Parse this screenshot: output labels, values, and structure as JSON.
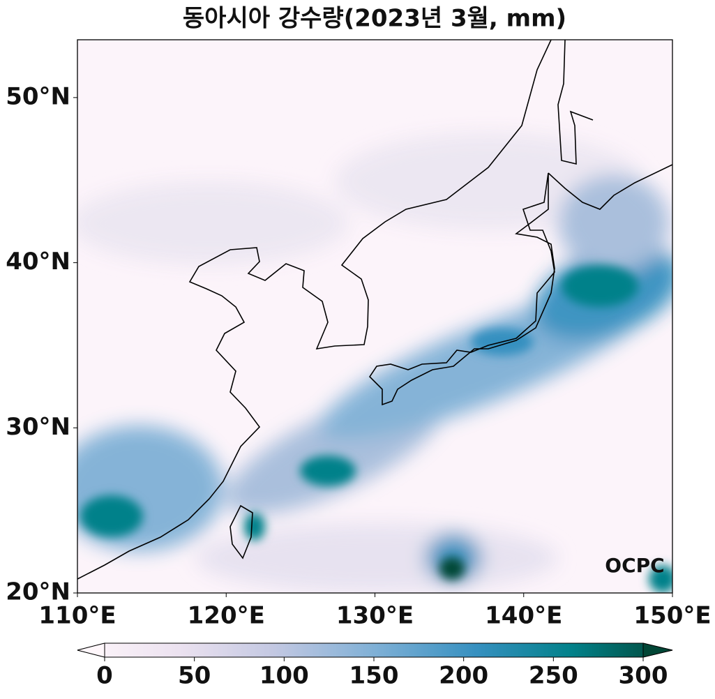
{
  "chart_data": {
    "type": "map",
    "title": "동아시아 강수량(2023년 3월, mm)",
    "xlim": [
      110,
      150
    ],
    "ylim": [
      20,
      53.5
    ],
    "xticks": [
      {
        "value": 110,
        "label": "110°E"
      },
      {
        "value": 120,
        "label": "120°E"
      },
      {
        "value": 130,
        "label": "130°E"
      },
      {
        "value": 140,
        "label": "140°E"
      },
      {
        "value": 150,
        "label": "150°E"
      }
    ],
    "yticks": [
      {
        "value": 20,
        "label": "20°N"
      },
      {
        "value": 30,
        "label": "30°N"
      },
      {
        "value": 40,
        "label": "40°N"
      },
      {
        "value": 50,
        "label": "50°N"
      }
    ],
    "colorbar": {
      "clim": [
        0,
        300
      ],
      "ticks": [
        0,
        50,
        100,
        150,
        200,
        250,
        300
      ]
    },
    "watermark": "OCPC"
  }
}
